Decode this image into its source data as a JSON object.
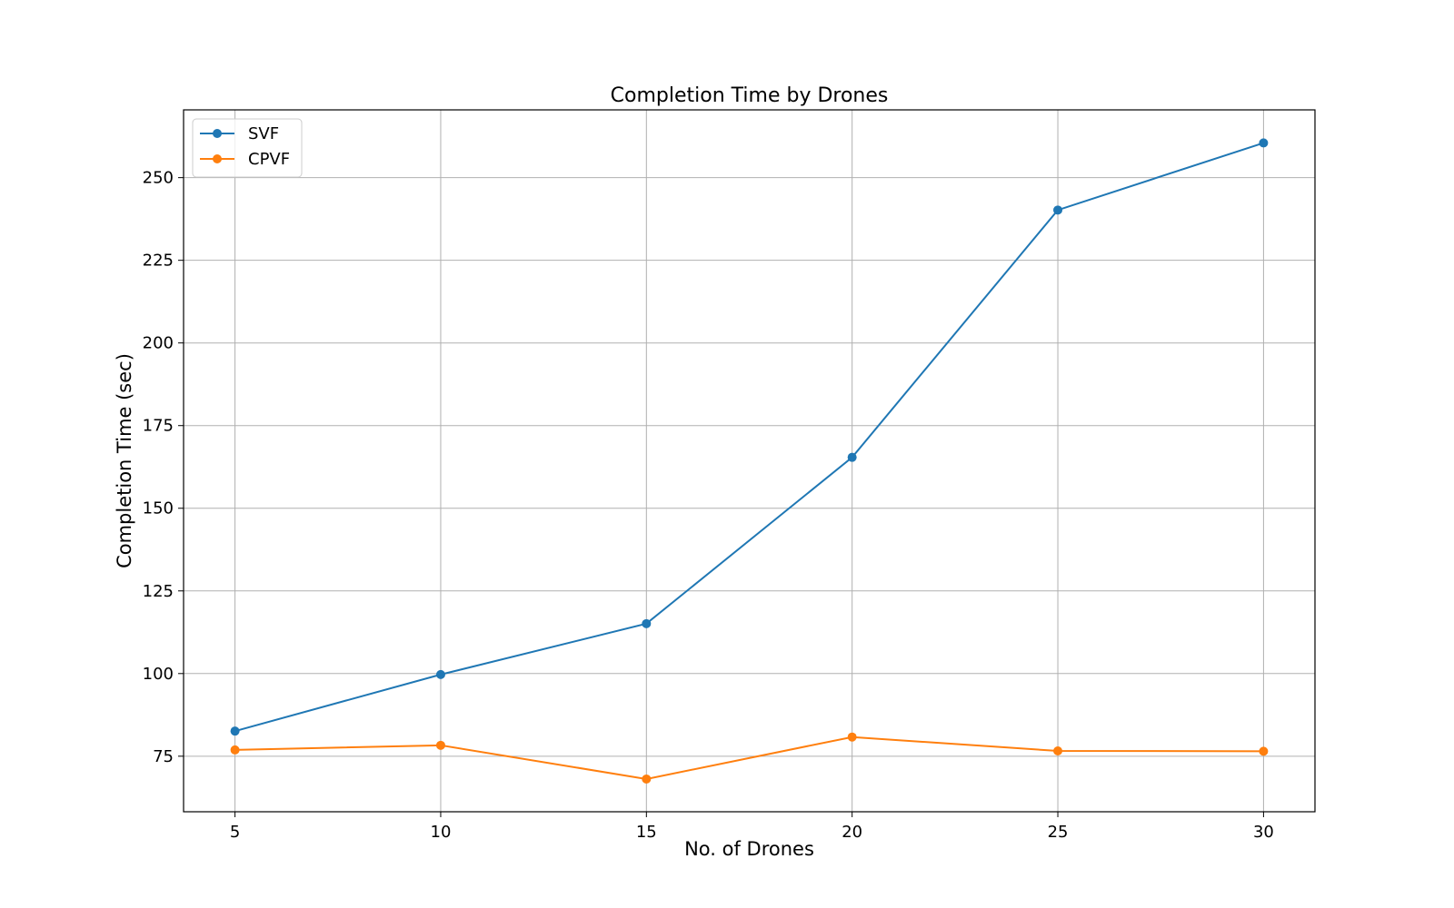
{
  "chart_data": {
    "type": "line",
    "title": "Completion Time by Drones",
    "xlabel": "No. of Drones",
    "ylabel": "Completion Time (sec)",
    "x": [
      5,
      10,
      15,
      20,
      25,
      30
    ],
    "xticks": [
      "5",
      "10",
      "15",
      "20",
      "25",
      "30"
    ],
    "yticks": [
      "75",
      "100",
      "125",
      "150",
      "175",
      "200",
      "225",
      "250"
    ],
    "xlim": [
      3.75,
      31.25
    ],
    "ylim": [
      58.2,
      270.5
    ],
    "grid": true,
    "legend_position": "top-left",
    "series": [
      {
        "name": "SVF",
        "color": "#1f77b4",
        "values": [
          82.6,
          99.7,
          115.1,
          165.4,
          240.2,
          260.5
        ]
      },
      {
        "name": "CPVF",
        "color": "#ff7f0e",
        "values": [
          76.9,
          78.3,
          68.1,
          80.8,
          76.6,
          76.5
        ]
      }
    ]
  }
}
